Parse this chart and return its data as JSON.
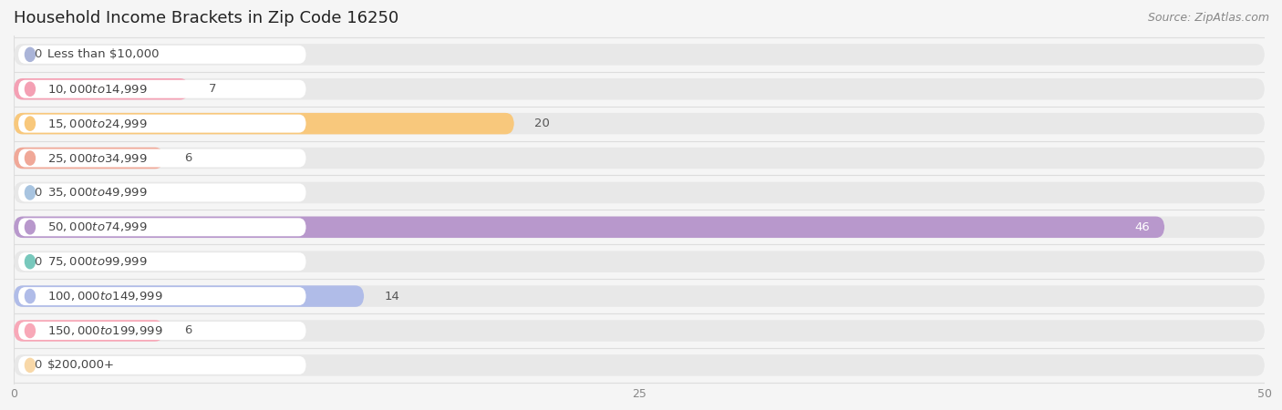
{
  "title": "Household Income Brackets in Zip Code 16250",
  "source": "Source: ZipAtlas.com",
  "categories": [
    "Less than $10,000",
    "$10,000 to $14,999",
    "$15,000 to $24,999",
    "$25,000 to $34,999",
    "$35,000 to $49,999",
    "$50,000 to $74,999",
    "$75,000 to $99,999",
    "$100,000 to $149,999",
    "$150,000 to $199,999",
    "$200,000+"
  ],
  "values": [
    0,
    7,
    20,
    6,
    0,
    46,
    0,
    14,
    6,
    0
  ],
  "bar_colors": [
    "#aab4d8",
    "#f4a0b4",
    "#f8c87c",
    "#f0a898",
    "#a8c4e0",
    "#b898cc",
    "#78c8bc",
    "#b0bce8",
    "#f8a8b8",
    "#f8d8a8"
  ],
  "xlim": [
    0,
    50
  ],
  "xticks": [
    0,
    25,
    50
  ],
  "bg_color": "#f5f5f5",
  "bar_bg_color": "#e8e8e8",
  "label_bg_color": "#ffffff",
  "grid_color": "#dddddd",
  "title_fontsize": 13,
  "label_fontsize": 9.5,
  "value_fontsize": 9.5,
  "source_fontsize": 9
}
